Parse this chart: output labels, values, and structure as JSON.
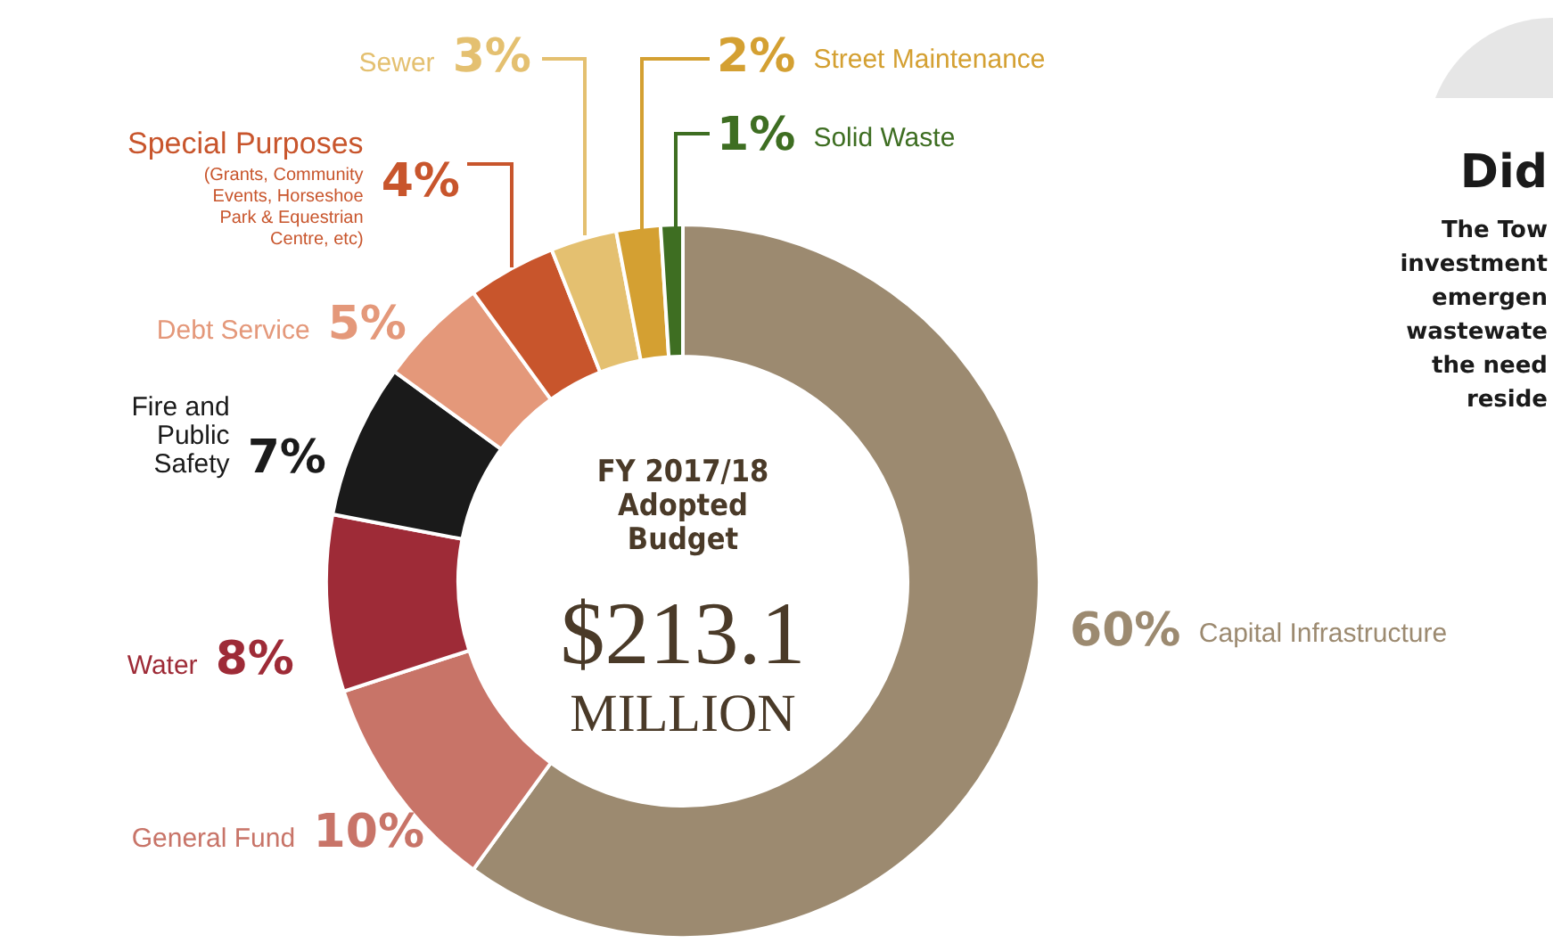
{
  "chart_data": {
    "type": "donut",
    "title": "FY 2017/18 Adopted Budget",
    "subtitle": "$213.1 MILLION",
    "categories": [
      "Capital Infrastructure",
      "General Fund",
      "Water",
      "Fire and Public Safety",
      "Debt Service",
      "Special Purposes (Grants, Community Events, Horseshoe Park & Equestrian Centre, etc)",
      "Sewer",
      "Street Maintenance",
      "Solid Waste"
    ],
    "values": [
      60,
      10,
      8,
      7,
      5,
      4,
      3,
      2,
      1
    ],
    "value_labels": [
      "60%",
      "10%",
      "8%",
      "7%",
      "5%",
      "4%",
      "3%",
      "2%",
      "1%"
    ],
    "colors": [
      "#9c8a70",
      "#c87468",
      "#9e2b37",
      "#1a1a1a",
      "#e4987a",
      "#c8552c",
      "#e4c070",
      "#d4a032",
      "#3e6e22"
    ],
    "annotations": [
      "Did",
      "The Tow",
      "investment",
      "emergen",
      "wastewate",
      "the need",
      "reside"
    ]
  }
}
